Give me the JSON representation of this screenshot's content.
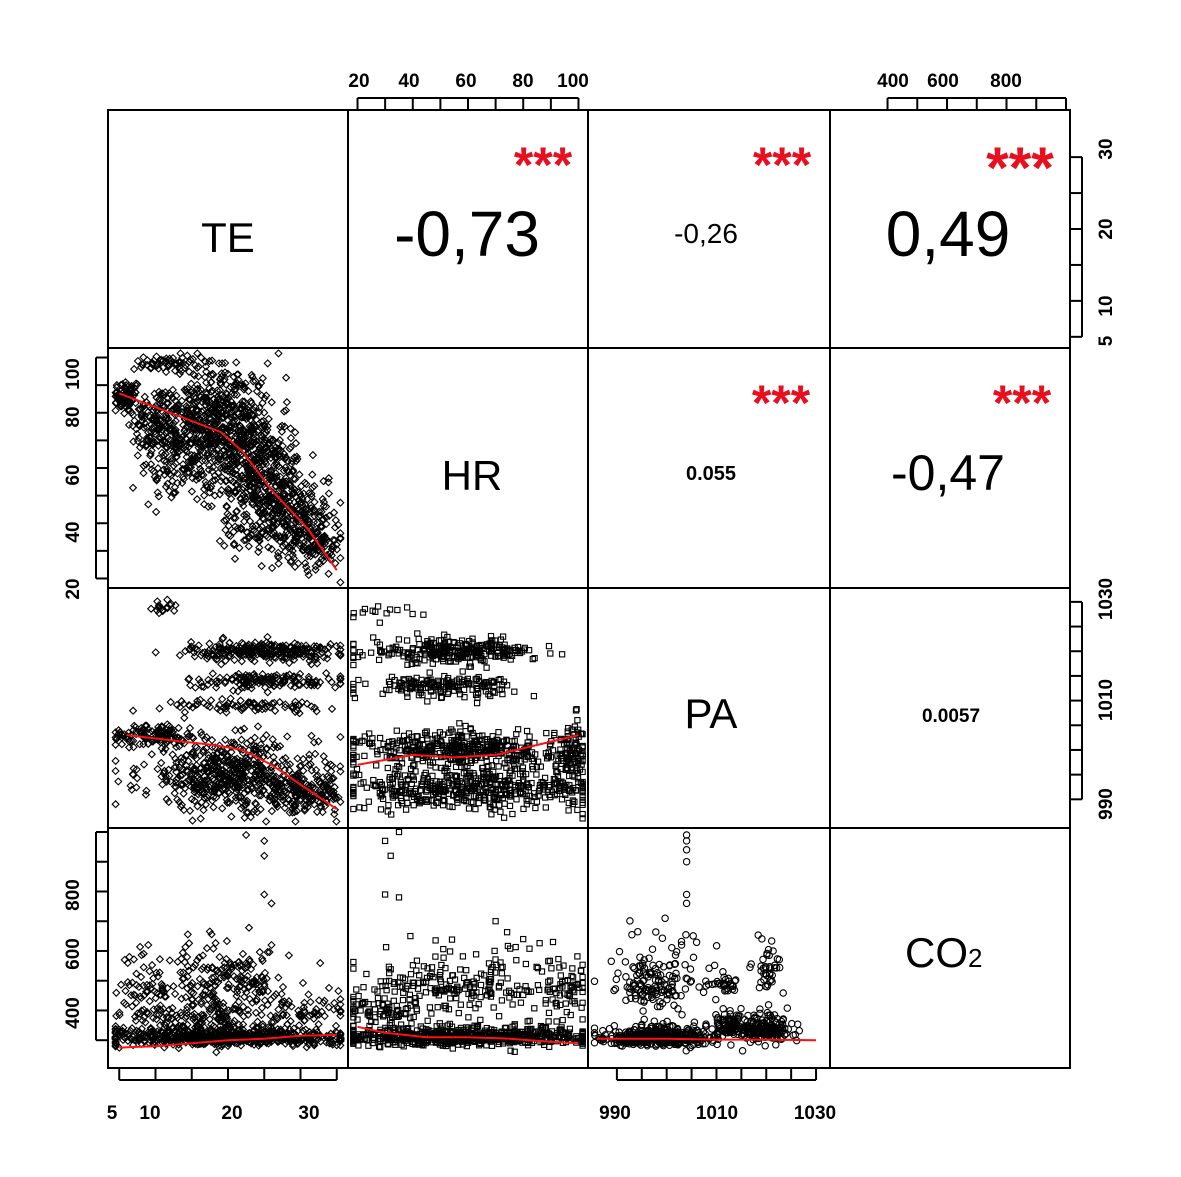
{
  "chart_data": {
    "type": "scatter",
    "title": "",
    "variables": [
      {
        "id": "TE",
        "label": "TE",
        "range": [
          4,
          36
        ]
      },
      {
        "id": "HR",
        "label": "HR",
        "range": [
          18,
          102
        ]
      },
      {
        "id": "PA",
        "label": "PA",
        "range": [
          985,
          1032
        ]
      },
      {
        "id": "CO2",
        "label": "CO",
        "label_sub": "2",
        "range": [
          220,
          1000
        ]
      }
    ],
    "axes": {
      "top_HR_ticks": [
        "20",
        "40",
        "60",
        "80",
        "100"
      ],
      "top_CO2_ticks": [
        "400",
        "600",
        "800"
      ],
      "right_TE_ticks": [
        "5",
        "10",
        "20",
        "30"
      ],
      "right_PA_ticks": [
        "990",
        "1010",
        "1030"
      ],
      "left_HR_ticks": [
        "20",
        "40",
        "60",
        "80",
        "100"
      ],
      "left_CO2_ticks": [
        "400",
        "600",
        "800"
      ],
      "bottom_TE_ticks": [
        "5",
        "10",
        "20",
        "30"
      ],
      "bottom_PA_ticks": [
        "990",
        "1010",
        "1030"
      ]
    },
    "correlations": [
      {
        "pair": [
          "TE",
          "HR"
        ],
        "text": "-0,73",
        "stars": "***"
      },
      {
        "pair": [
          "TE",
          "PA"
        ],
        "text": "-0,26",
        "stars": "***"
      },
      {
        "pair": [
          "TE",
          "CO2"
        ],
        "text": "0,49",
        "stars": "***"
      },
      {
        "pair": [
          "HR",
          "PA"
        ],
        "text": "0.055",
        "stars": "***"
      },
      {
        "pair": [
          "HR",
          "CO2"
        ],
        "text": "-0,47",
        "stars": "***"
      },
      {
        "pair": [
          "PA",
          "CO2"
        ],
        "text": "0.0057",
        "stars": ""
      }
    ],
    "smoothers": [
      {
        "pair": [
          "TE",
          "HR"
        ],
        "x": [
          5,
          10,
          15,
          19,
          22,
          26,
          31,
          35
        ],
        "y": [
          87,
          82,
          77,
          73,
          66,
          52,
          38,
          23
        ]
      },
      {
        "pair": [
          "TE",
          "PA"
        ],
        "x": [
          6,
          12,
          18,
          22,
          26,
          30,
          35
        ],
        "y": [
          1003,
          1002,
          1001,
          1000,
          997,
          993,
          988
        ]
      },
      {
        "pair": [
          "HR",
          "PA"
        ],
        "x": [
          20,
          40,
          55,
          70,
          85,
          100
        ],
        "y": [
          997,
          999,
          998.5,
          999,
          1001,
          1003
        ]
      },
      {
        "pair": [
          "TE",
          "CO2"
        ],
        "x": [
          5,
          10,
          15,
          20,
          25,
          30,
          35
        ],
        "y": [
          275,
          280,
          290,
          300,
          305,
          315,
          318
        ]
      },
      {
        "pair": [
          "HR",
          "CO2"
        ],
        "x": [
          20,
          30,
          45,
          60,
          75,
          90,
          100
        ],
        "y": [
          345,
          325,
          310,
          310,
          305,
          295,
          290
        ]
      },
      {
        "pair": [
          "PA",
          "CO2"
        ],
        "x": [
          986,
          1000,
          1010,
          1020,
          1030
        ],
        "y": [
          305,
          305,
          302,
          302,
          300
        ]
      }
    ],
    "point_clusters": {
      "TE_HR": [
        {
          "cx": 6,
          "cy": 86,
          "sx": 1.0,
          "sy": 3,
          "n": 70
        },
        {
          "cx": 10,
          "cy": 78,
          "sx": 2.0,
          "sy": 6,
          "n": 120
        },
        {
          "cx": 15,
          "cy": 72,
          "sx": 3.0,
          "sy": 9,
          "n": 250
        },
        {
          "cx": 19,
          "cy": 82,
          "sx": 3.0,
          "sy": 8,
          "n": 220
        },
        {
          "cx": 22,
          "cy": 68,
          "sx": 3.0,
          "sy": 10,
          "n": 280
        },
        {
          "cx": 25,
          "cy": 55,
          "sx": 3.0,
          "sy": 9,
          "n": 250
        },
        {
          "cx": 29,
          "cy": 44,
          "sx": 2.5,
          "sy": 8,
          "n": 200
        },
        {
          "cx": 32,
          "cy": 33,
          "sx": 2.0,
          "sy": 5,
          "n": 120
        },
        {
          "cx": 12,
          "cy": 98,
          "sx": 2.5,
          "sy": 1.5,
          "n": 60
        },
        {
          "cx": 13,
          "cy": 60,
          "sx": 2.5,
          "sy": 6,
          "n": 70
        },
        {
          "cx": 23,
          "cy": 37,
          "sx": 2.0,
          "sy": 3,
          "n": 50
        }
      ],
      "TE_PA": [
        {
          "cx": 11,
          "cy": 1029,
          "sx": 1.0,
          "sy": 0.6,
          "n": 18
        },
        {
          "cx": 25,
          "cy": 1020,
          "sx": 5.0,
          "sy": 1.0,
          "n": 260
        },
        {
          "cx": 25,
          "cy": 1014,
          "sx": 5.5,
          "sy": 0.8,
          "n": 140
        },
        {
          "cx": 23,
          "cy": 1009,
          "sx": 6.0,
          "sy": 0.6,
          "n": 80
        },
        {
          "cx": 10,
          "cy": 1003,
          "sx": 3.0,
          "sy": 1.2,
          "n": 120
        },
        {
          "cx": 20,
          "cy": 995,
          "sx": 6.0,
          "sy": 3.5,
          "n": 520
        },
        {
          "cx": 30,
          "cy": 991,
          "sx": 3.0,
          "sy": 2.0,
          "n": 180
        }
      ],
      "HR_PA": [
        {
          "cx": 55,
          "cy": 1020,
          "sx": 15,
          "sy": 1.2,
          "n": 260
        },
        {
          "cx": 50,
          "cy": 1013,
          "sx": 13,
          "sy": 1.0,
          "n": 160
        },
        {
          "cx": 60,
          "cy": 1000,
          "sx": 20,
          "sy": 2.0,
          "n": 420
        },
        {
          "cx": 60,
          "cy": 992,
          "sx": 22,
          "sy": 2.0,
          "n": 420
        },
        {
          "cx": 97,
          "cy": 998,
          "sx": 3,
          "sy": 4,
          "n": 90
        },
        {
          "cx": 35,
          "cy": 1028,
          "sx": 8,
          "sy": 0.8,
          "n": 14
        }
      ],
      "TE_CO2": [
        {
          "cx": 20,
          "cy": 300,
          "sx": 8.0,
          "sy": 25,
          "n": 700
        },
        {
          "cx": 8,
          "cy": 440,
          "sx": 2.0,
          "sy": 90,
          "n": 60
        },
        {
          "cx": 20,
          "cy": 480,
          "sx": 4.0,
          "sy": 90,
          "n": 160
        },
        {
          "cx": 28,
          "cy": 380,
          "sx": 5.0,
          "sy": 50,
          "n": 90
        },
        {
          "cx": 15,
          "cy": 360,
          "sx": 4.0,
          "sy": 50,
          "n": 120
        }
      ],
      "HR_CO2": [
        {
          "cx": 60,
          "cy": 300,
          "sx": 25,
          "sy": 25,
          "n": 700
        },
        {
          "cx": 60,
          "cy": 460,
          "sx": 20,
          "sy": 90,
          "n": 200
        },
        {
          "cx": 30,
          "cy": 380,
          "sx": 8,
          "sy": 50,
          "n": 80
        },
        {
          "cx": 95,
          "cy": 420,
          "sx": 5,
          "sy": 110,
          "n": 60
        }
      ],
      "PA_CO2": [
        {
          "cx": 998,
          "cy": 300,
          "sx": 5,
          "sy": 25,
          "n": 450
        },
        {
          "cx": 998,
          "cy": 460,
          "sx": 4,
          "sy": 100,
          "n": 150
        },
        {
          "cx": 1020,
          "cy": 320,
          "sx": 2.5,
          "sy": 40,
          "n": 180
        },
        {
          "cx": 1013,
          "cy": 330,
          "sx": 2.0,
          "sy": 40,
          "n": 90
        },
        {
          "cx": 1020,
          "cy": 500,
          "sx": 1.5,
          "sy": 70,
          "n": 40
        },
        {
          "cx": 1012,
          "cy": 460,
          "sx": 1.5,
          "sy": 60,
          "n": 30
        }
      ]
    },
    "outliers": {
      "TE_CO2": [
        [
          22.5,
          990
        ],
        [
          25,
          970
        ],
        [
          25,
          920
        ],
        [
          25,
          790
        ],
        [
          26,
          760
        ],
        [
          26,
          620
        ],
        [
          9,
          620
        ]
      ],
      "HR_CO2": [
        [
          30,
          970
        ],
        [
          32,
          920
        ],
        [
          35,
          1000
        ],
        [
          30,
          790
        ],
        [
          35,
          780
        ],
        [
          70,
          700
        ],
        [
          80,
          640
        ]
      ],
      "PA_CO2": [
        [
          1004,
          990
        ],
        [
          1004,
          970
        ],
        [
          1004,
          940
        ],
        [
          1004,
          900
        ],
        [
          1004,
          790
        ],
        [
          1004,
          760
        ],
        [
          1003,
          620
        ]
      ]
    }
  }
}
